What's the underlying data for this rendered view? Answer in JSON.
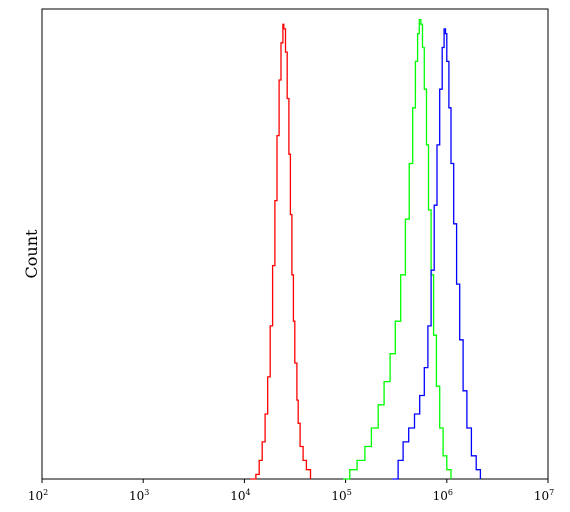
{
  "chart_data": {
    "type": "line",
    "title": "",
    "xlabel": "",
    "ylabel": "Count",
    "x_scale": "log",
    "xlim": [
      100,
      10000000
    ],
    "ylim": [
      0,
      1.0
    ],
    "x_ticks": [
      {
        "base": "10",
        "exp": "2"
      },
      {
        "base": "10",
        "exp": "3"
      },
      {
        "base": "10",
        "exp": "4"
      },
      {
        "base": "10",
        "exp": "5"
      },
      {
        "base": "10",
        "exp": "6"
      },
      {
        "base": "10",
        "exp": "7"
      }
    ],
    "tick_values": [
      100,
      1000,
      10000,
      100000,
      1000000,
      10000000
    ],
    "grid": false,
    "legend": "none",
    "series": [
      {
        "color": "#ff0000",
        "points": [
          [
            11500,
            0.0
          ],
          [
            13000,
            0.01
          ],
          [
            14000,
            0.04
          ],
          [
            15000,
            0.08
          ],
          [
            16000,
            0.14
          ],
          [
            17000,
            0.22
          ],
          [
            18000,
            0.33
          ],
          [
            19000,
            0.46
          ],
          [
            20000,
            0.6
          ],
          [
            21000,
            0.74
          ],
          [
            22000,
            0.86
          ],
          [
            23000,
            0.94
          ],
          [
            24000,
            0.98
          ],
          [
            24500,
            0.97
          ],
          [
            25500,
            0.92
          ],
          [
            26500,
            0.82
          ],
          [
            27500,
            0.7
          ],
          [
            28500,
            0.57
          ],
          [
            29500,
            0.44
          ],
          [
            30500,
            0.34
          ],
          [
            31500,
            0.25
          ],
          [
            33000,
            0.17
          ],
          [
            34000,
            0.12
          ],
          [
            35500,
            0.07
          ],
          [
            38000,
            0.04
          ],
          [
            41000,
            0.02
          ],
          [
            45000,
            0.0
          ]
        ]
      },
      {
        "color": "#00ff00",
        "points": [
          [
            95000,
            0.0
          ],
          [
            110000,
            0.02
          ],
          [
            130000,
            0.04
          ],
          [
            155000,
            0.07
          ],
          [
            180000,
            0.11
          ],
          [
            210000,
            0.16
          ],
          [
            240000,
            0.21
          ],
          [
            275000,
            0.27
          ],
          [
            310000,
            0.34
          ],
          [
            350000,
            0.44
          ],
          [
            390000,
            0.56
          ],
          [
            425000,
            0.68
          ],
          [
            460000,
            0.8
          ],
          [
            490000,
            0.9
          ],
          [
            515000,
            0.96
          ],
          [
            535000,
            0.99
          ],
          [
            555000,
            0.98
          ],
          [
            575000,
            0.93
          ],
          [
            600000,
            0.84
          ],
          [
            630000,
            0.72
          ],
          [
            660000,
            0.58
          ],
          [
            700000,
            0.44
          ],
          [
            740000,
            0.31
          ],
          [
            790000,
            0.2
          ],
          [
            850000,
            0.11
          ],
          [
            920000,
            0.05
          ],
          [
            1000000,
            0.02
          ],
          [
            1100000,
            0.0
          ]
        ]
      },
      {
        "color": "#0000ff",
        "points": [
          [
            290000,
            0.0
          ],
          [
            330000,
            0.04
          ],
          [
            370000,
            0.08
          ],
          [
            420000,
            0.11
          ],
          [
            480000,
            0.14
          ],
          [
            540000,
            0.18
          ],
          [
            600000,
            0.24
          ],
          [
            650000,
            0.33
          ],
          [
            700000,
            0.45
          ],
          [
            750000,
            0.59
          ],
          [
            800000,
            0.72
          ],
          [
            850000,
            0.84
          ],
          [
            900000,
            0.93
          ],
          [
            940000,
            0.97
          ],
          [
            970000,
            0.96
          ],
          [
            1000000,
            0.9
          ],
          [
            1050000,
            0.8
          ],
          [
            1100000,
            0.68
          ],
          [
            1170000,
            0.55
          ],
          [
            1250000,
            0.42
          ],
          [
            1340000,
            0.3
          ],
          [
            1450000,
            0.19
          ],
          [
            1580000,
            0.11
          ],
          [
            1750000,
            0.05
          ],
          [
            1950000,
            0.02
          ],
          [
            2150000,
            0.0
          ]
        ]
      }
    ]
  }
}
